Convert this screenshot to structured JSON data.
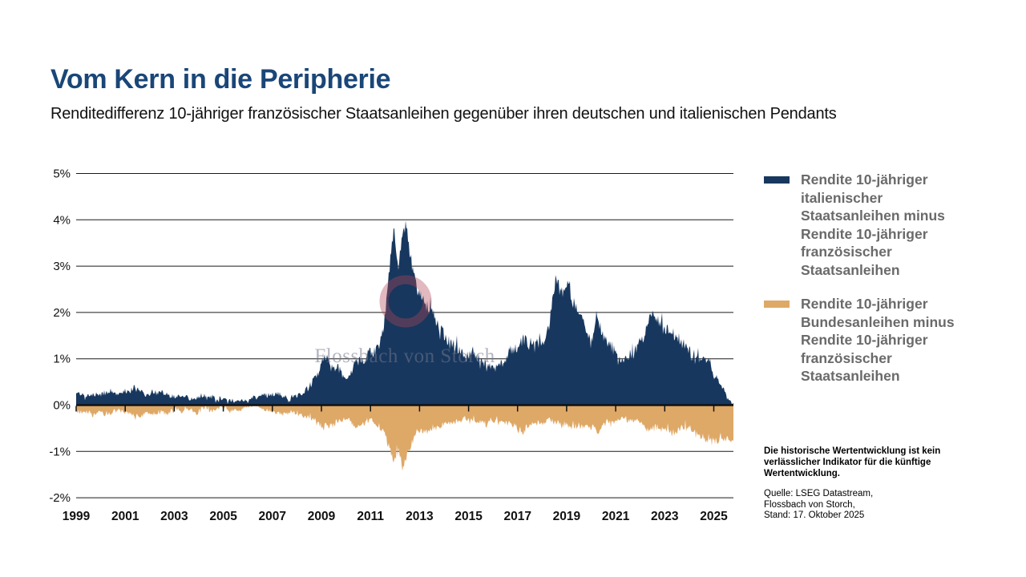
{
  "header": {
    "title": "Vom Kern in die Peripherie",
    "subtitle": "Renditedifferenz 10-jähriger französischer Staatsanleihen gegenüber ihren deutschen und italienischen Pendants"
  },
  "watermark": {
    "text": "Flossbach von Storch"
  },
  "legend": {
    "items": [
      {
        "id": "italy-france",
        "label": "Rendite 10-jähriger italienischer Staatsanleihen minus Rendite 10-jähriger französischer Staatsanleihen",
        "color": "#17375E"
      },
      {
        "id": "germany-france",
        "label": "Rendite 10-jähriger Bundesanleihen minus Rendite 10-jähriger französischer Staatsanleihen",
        "color": "#DEA867"
      }
    ]
  },
  "notes": {
    "disclaimer": "Die historische Wertentwicklung ist kein verlässlicher Indikator für die künftige Wertentwicklung.",
    "source_lines": [
      "Quelle: LSEG Datastream,",
      "Flossbach von Storch,",
      "Stand: 17. Oktober 2025"
    ]
  },
  "chart_data": {
    "type": "area",
    "x_range": [
      1999,
      2025.8
    ],
    "ylim": [
      -2,
      5
    ],
    "grid": true,
    "legend_position": "right",
    "unit": "percentage points",
    "y_ticks": [
      {
        "v": 5,
        "label": "5%"
      },
      {
        "v": 4,
        "label": "4%"
      },
      {
        "v": 3,
        "label": "3%"
      },
      {
        "v": 2,
        "label": "2%"
      },
      {
        "v": 1,
        "label": "1%"
      },
      {
        "v": 0,
        "label": "0%"
      },
      {
        "v": -1,
        "label": "-1%"
      },
      {
        "v": -2,
        "label": "-2%"
      }
    ],
    "x_ticks": [
      {
        "v": 1999,
        "label": "1999"
      },
      {
        "v": 2001,
        "label": "2001"
      },
      {
        "v": 2003,
        "label": "2003"
      },
      {
        "v": 2005,
        "label": "2005"
      },
      {
        "v": 2007,
        "label": "2007"
      },
      {
        "v": 2009,
        "label": "2009"
      },
      {
        "v": 2011,
        "label": "2011"
      },
      {
        "v": 2013,
        "label": "2013"
      },
      {
        "v": 2015,
        "label": "2015"
      },
      {
        "v": 2017,
        "label": "2017"
      },
      {
        "v": 2019,
        "label": "2019"
      },
      {
        "v": 2021,
        "label": "2021"
      },
      {
        "v": 2023,
        "label": "2023"
      },
      {
        "v": 2025,
        "label": "2025"
      }
    ],
    "series": [
      {
        "name": "Rendite 10-jähriger italienischer Staatsanleihen minus Rendite 10-jähriger französischer Staatsanleihen",
        "color": "#17375E",
        "sign": 1,
        "keypoints": [
          [
            1999.0,
            0.24
          ],
          [
            1999.3,
            0.2
          ],
          [
            1999.6,
            0.24
          ],
          [
            2000.0,
            0.26
          ],
          [
            2000.4,
            0.3
          ],
          [
            2000.8,
            0.28
          ],
          [
            2001.2,
            0.33
          ],
          [
            2001.6,
            0.3
          ],
          [
            2002.0,
            0.27
          ],
          [
            2002.4,
            0.3
          ],
          [
            2002.8,
            0.26
          ],
          [
            2003.2,
            0.23
          ],
          [
            2003.6,
            0.21
          ],
          [
            2004.0,
            0.22
          ],
          [
            2004.5,
            0.19
          ],
          [
            2005.0,
            0.19
          ],
          [
            2005.5,
            0.17
          ],
          [
            2006.0,
            0.14
          ],
          [
            2006.5,
            0.16
          ],
          [
            2007.0,
            0.2
          ],
          [
            2007.4,
            0.17
          ],
          [
            2007.8,
            0.24
          ],
          [
            2008.2,
            0.3
          ],
          [
            2008.6,
            0.42
          ],
          [
            2008.9,
            0.62
          ],
          [
            2009.05,
            0.95
          ],
          [
            2009.2,
            1.05
          ],
          [
            2009.4,
            0.8
          ],
          [
            2009.7,
            0.72
          ],
          [
            2010.0,
            0.62
          ],
          [
            2010.3,
            0.78
          ],
          [
            2010.6,
            0.92
          ],
          [
            2010.9,
            1.05
          ],
          [
            2011.1,
            1.12
          ],
          [
            2011.4,
            1.3
          ],
          [
            2011.6,
            1.95
          ],
          [
            2011.75,
            2.7
          ],
          [
            2011.87,
            3.45
          ],
          [
            2011.95,
            3.92
          ],
          [
            2012.05,
            3.2
          ],
          [
            2012.15,
            2.95
          ],
          [
            2012.3,
            3.55
          ],
          [
            2012.45,
            3.88
          ],
          [
            2012.55,
            3.45
          ],
          [
            2012.7,
            3.0
          ],
          [
            2012.85,
            2.65
          ],
          [
            2013.0,
            2.45
          ],
          [
            2013.2,
            2.2
          ],
          [
            2013.5,
            2.0
          ],
          [
            2013.8,
            1.7
          ],
          [
            2014.1,
            1.4
          ],
          [
            2014.4,
            1.25
          ],
          [
            2014.7,
            1.1
          ],
          [
            2015.0,
            0.98
          ],
          [
            2015.2,
            1.08
          ],
          [
            2015.5,
            0.92
          ],
          [
            2015.8,
            0.88
          ],
          [
            2016.1,
            0.82
          ],
          [
            2016.4,
            0.98
          ],
          [
            2016.7,
            1.08
          ],
          [
            2016.9,
            1.18
          ],
          [
            2017.1,
            1.32
          ],
          [
            2017.3,
            1.42
          ],
          [
            2017.5,
            1.28
          ],
          [
            2017.7,
            1.38
          ],
          [
            2017.9,
            1.28
          ],
          [
            2018.1,
            1.35
          ],
          [
            2018.3,
            1.85
          ],
          [
            2018.45,
            2.45
          ],
          [
            2018.6,
            2.82
          ],
          [
            2018.75,
            2.5
          ],
          [
            2018.9,
            2.6
          ],
          [
            2019.05,
            2.68
          ],
          [
            2019.2,
            2.35
          ],
          [
            2019.4,
            2.1
          ],
          [
            2019.6,
            1.9
          ],
          [
            2019.8,
            1.55
          ],
          [
            2020.0,
            1.35
          ],
          [
            2020.2,
            1.98
          ],
          [
            2020.35,
            1.75
          ],
          [
            2020.5,
            1.55
          ],
          [
            2020.7,
            1.4
          ],
          [
            2020.9,
            1.18
          ],
          [
            2021.1,
            1.02
          ],
          [
            2021.4,
            0.95
          ],
          [
            2021.7,
            1.05
          ],
          [
            2022.0,
            1.3
          ],
          [
            2022.2,
            1.55
          ],
          [
            2022.4,
            2.02
          ],
          [
            2022.6,
            1.9
          ],
          [
            2022.8,
            1.75
          ],
          [
            2023.0,
            1.62
          ],
          [
            2023.2,
            1.72
          ],
          [
            2023.4,
            1.55
          ],
          [
            2023.6,
            1.42
          ],
          [
            2023.8,
            1.3
          ],
          [
            2024.0,
            1.15
          ],
          [
            2024.2,
            0.98
          ],
          [
            2024.4,
            1.02
          ],
          [
            2024.6,
            0.95
          ],
          [
            2024.8,
            0.92
          ],
          [
            2025.0,
            0.62
          ],
          [
            2025.15,
            0.58
          ],
          [
            2025.3,
            0.45
          ],
          [
            2025.5,
            0.3
          ],
          [
            2025.65,
            0.18
          ],
          [
            2025.8,
            0.1
          ]
        ]
      },
      {
        "name": "Rendite 10-jähriger Bundesanleihen minus Rendite 10-jähriger französischer Staatsanleihen",
        "color": "#DEA867",
        "sign": -1,
        "keypoints": [
          [
            1999.0,
            -0.12
          ],
          [
            1999.5,
            -0.15
          ],
          [
            2000.0,
            -0.16
          ],
          [
            2000.5,
            -0.14
          ],
          [
            2001.0,
            -0.18
          ],
          [
            2001.5,
            -0.16
          ],
          [
            2002.0,
            -0.14
          ],
          [
            2002.5,
            -0.15
          ],
          [
            2003.0,
            -0.12
          ],
          [
            2003.5,
            -0.11
          ],
          [
            2004.0,
            -0.11
          ],
          [
            2004.5,
            -0.1
          ],
          [
            2005.0,
            -0.09
          ],
          [
            2005.5,
            -0.08
          ],
          [
            2006.0,
            -0.07
          ],
          [
            2006.5,
            -0.08
          ],
          [
            2007.0,
            -0.09
          ],
          [
            2007.5,
            -0.12
          ],
          [
            2008.0,
            -0.18
          ],
          [
            2008.5,
            -0.28
          ],
          [
            2008.9,
            -0.38
          ],
          [
            2009.1,
            -0.5
          ],
          [
            2009.4,
            -0.42
          ],
          [
            2009.7,
            -0.35
          ],
          [
            2010.0,
            -0.3
          ],
          [
            2010.4,
            -0.38
          ],
          [
            2010.8,
            -0.4
          ],
          [
            2011.1,
            -0.38
          ],
          [
            2011.4,
            -0.52
          ],
          [
            2011.6,
            -0.72
          ],
          [
            2011.8,
            -0.95
          ],
          [
            2011.92,
            -1.25
          ],
          [
            2012.0,
            -1.1
          ],
          [
            2012.15,
            -1.0
          ],
          [
            2012.3,
            -1.3
          ],
          [
            2012.4,
            -1.15
          ],
          [
            2012.55,
            -0.95
          ],
          [
            2012.7,
            -0.78
          ],
          [
            2012.9,
            -0.65
          ],
          [
            2013.1,
            -0.58
          ],
          [
            2013.4,
            -0.52
          ],
          [
            2013.7,
            -0.48
          ],
          [
            2014.0,
            -0.44
          ],
          [
            2014.4,
            -0.4
          ],
          [
            2014.8,
            -0.36
          ],
          [
            2015.1,
            -0.34
          ],
          [
            2015.5,
            -0.38
          ],
          [
            2015.9,
            -0.36
          ],
          [
            2016.2,
            -0.4
          ],
          [
            2016.6,
            -0.44
          ],
          [
            2016.9,
            -0.48
          ],
          [
            2017.1,
            -0.62
          ],
          [
            2017.3,
            -0.55
          ],
          [
            2017.5,
            -0.38
          ],
          [
            2017.8,
            -0.32
          ],
          [
            2018.1,
            -0.3
          ],
          [
            2018.5,
            -0.36
          ],
          [
            2018.9,
            -0.42
          ],
          [
            2019.2,
            -0.44
          ],
          [
            2019.5,
            -0.38
          ],
          [
            2019.8,
            -0.32
          ],
          [
            2020.1,
            -0.38
          ],
          [
            2020.25,
            -0.52
          ],
          [
            2020.5,
            -0.42
          ],
          [
            2020.8,
            -0.36
          ],
          [
            2021.1,
            -0.32
          ],
          [
            2021.5,
            -0.34
          ],
          [
            2021.9,
            -0.38
          ],
          [
            2022.2,
            -0.46
          ],
          [
            2022.5,
            -0.55
          ],
          [
            2022.8,
            -0.5
          ],
          [
            2023.1,
            -0.52
          ],
          [
            2023.4,
            -0.56
          ],
          [
            2023.7,
            -0.52
          ],
          [
            2024.0,
            -0.48
          ],
          [
            2024.3,
            -0.52
          ],
          [
            2024.5,
            -0.62
          ],
          [
            2024.7,
            -0.78
          ],
          [
            2024.9,
            -0.8
          ],
          [
            2025.1,
            -0.74
          ],
          [
            2025.3,
            -0.7
          ],
          [
            2025.5,
            -0.72
          ],
          [
            2025.65,
            -0.78
          ],
          [
            2025.8,
            -0.82
          ]
        ]
      }
    ]
  }
}
